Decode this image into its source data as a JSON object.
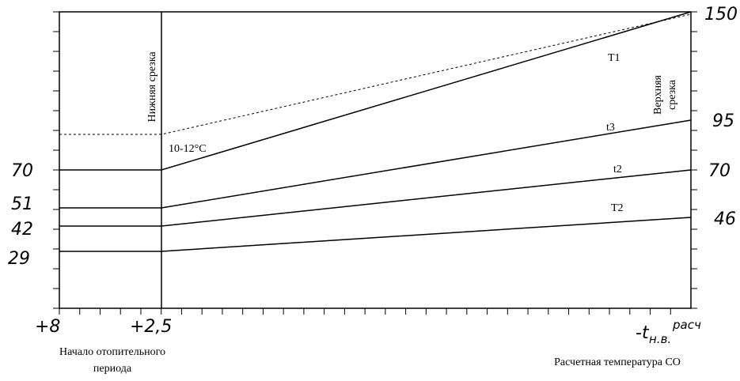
{
  "axis_left_labels": [
    "70",
    "51",
    "42",
    "29"
  ],
  "axis_right_labels": [
    "150",
    "95",
    "70",
    "46"
  ],
  "axis_bottom": {
    "start": "+8",
    "cut": "+2,5",
    "end_main": "-t",
    "end_sub": "н.в.",
    "end_sup": "расч"
  },
  "captions": {
    "start": [
      "Начало отопительного",
      "периода"
    ],
    "end": "Расчетная температура СО"
  },
  "cutoffs": {
    "lower": "Нижняя срезка",
    "upper": [
      "Верхняя",
      "срезка"
    ]
  },
  "lines": [
    {
      "label": "T1"
    },
    {
      "label": "t3"
    },
    {
      "label": "t2"
    },
    {
      "label": "T2"
    }
  ],
  "annotation": "10-12°С"
}
